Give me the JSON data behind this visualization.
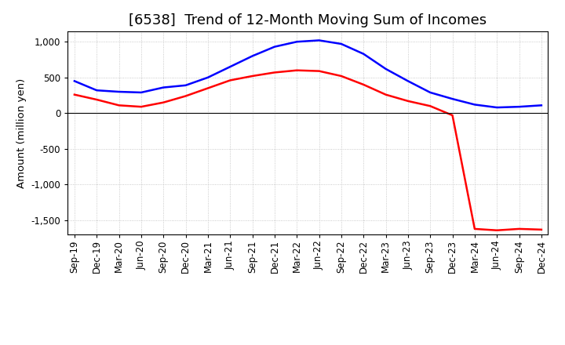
{
  "title": "[6538]  Trend of 12-Month Moving Sum of Incomes",
  "ylabel": "Amount (million yen)",
  "x_labels": [
    "Sep-19",
    "Dec-19",
    "Mar-20",
    "Jun-20",
    "Sep-20",
    "Dec-20",
    "Mar-21",
    "Jun-21",
    "Sep-21",
    "Dec-21",
    "Mar-22",
    "Jun-22",
    "Sep-22",
    "Dec-22",
    "Mar-23",
    "Jun-23",
    "Sep-23",
    "Dec-23",
    "Mar-24",
    "Jun-24",
    "Sep-24",
    "Dec-24"
  ],
  "ordinary_income": [
    450,
    320,
    300,
    290,
    360,
    390,
    500,
    650,
    800,
    930,
    1000,
    1020,
    970,
    830,
    620,
    450,
    290,
    200,
    120,
    80,
    90,
    110
  ],
  "net_income": [
    260,
    190,
    110,
    90,
    150,
    240,
    350,
    460,
    520,
    570,
    600,
    590,
    520,
    400,
    260,
    170,
    100,
    -30,
    -1620,
    -1640,
    -1620,
    -1630
  ],
  "ordinary_color": "#0000ff",
  "net_color": "#ff0000",
  "ylim": [
    -1700,
    1150
  ],
  "yticks": [
    -1500,
    -1000,
    -500,
    0,
    500,
    1000
  ],
  "background_color": "#ffffff",
  "grid_color": "#bbbbbb",
  "title_fontsize": 13,
  "axis_fontsize": 8.5,
  "legend_fontsize": 9.5
}
